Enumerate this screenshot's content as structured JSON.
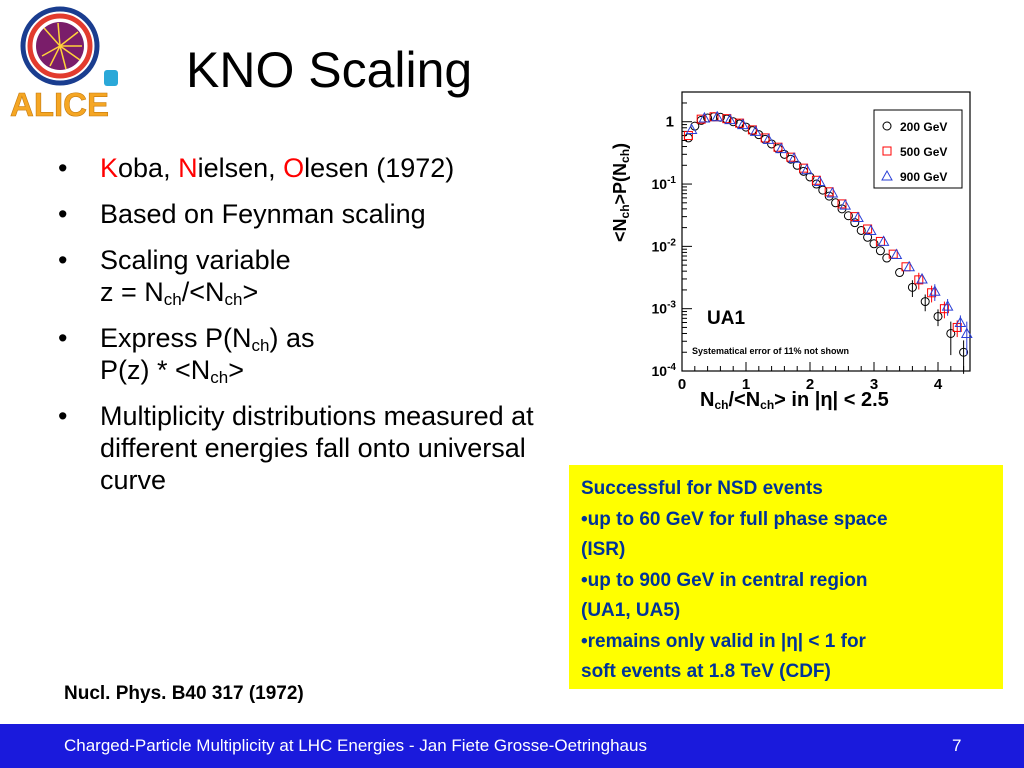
{
  "slide": {
    "title": "KNO Scaling",
    "reference": "Nucl. Phys. B40 317 (1972)"
  },
  "bullets": {
    "b1_k": "K",
    "b1_oba": "oba, ",
    "b1_n": "N",
    "b1_ielsen": "ielsen, ",
    "b1_o": "O",
    "b1_lesen": "lesen (1972)",
    "b2": "Based on Feynman scaling",
    "b3_line1": "Scaling variable",
    "b3_z": "z = N",
    "b3_ch1": "ch",
    "b3_mid": "/<N",
    "b3_ch2": "ch",
    "b3_end": ">",
    "b4_a": "Express P(N",
    "b4_ch1": "ch",
    "b4_b": ") as",
    "b4_c": "P(z) * <N",
    "b4_ch2": "ch",
    "b4_d": ">",
    "b5": "Multiplicity distributions measured at different energies fall onto universal curve"
  },
  "logo": {
    "text": "ALICE",
    "colors": {
      "text": "#f5a623",
      "ring": "#1a3d8f",
      "core": "#e23b2e"
    }
  },
  "axis_text": {
    "x_n": "N",
    "x_ch1": "ch",
    "x_mid": "/<N",
    "x_ch2": "ch",
    "x_end": "> in |η| < 2.5",
    "y_a": "<N",
    "y_ch1": "ch",
    "y_b": ">P(N",
    "y_ch2": "ch",
    "y_c": ")"
  },
  "chart_data": {
    "type": "scatter",
    "x_range": [
      0,
      4.5
    ],
    "y_scale": "log",
    "y_range": [
      0.0001,
      3
    ],
    "x_ticks": [
      0,
      1,
      2,
      3,
      4
    ],
    "y_ticks": [
      {
        "value": 1,
        "label": "1"
      },
      {
        "value": 0.1,
        "label": "10-1"
      },
      {
        "value": 0.01,
        "label": "10-2"
      },
      {
        "value": 0.001,
        "label": "10-3"
      },
      {
        "value": 0.0001,
        "label": "10-4"
      }
    ],
    "legend_position": "top-right",
    "annotations": [
      "UA1",
      "Systematical error of 11% not shown"
    ],
    "series": [
      {
        "name": "200 GeV",
        "marker": "circle",
        "color": "#000000",
        "x": [
          0.1,
          0.2,
          0.3,
          0.4,
          0.5,
          0.6,
          0.7,
          0.8,
          0.9,
          1.0,
          1.1,
          1.2,
          1.3,
          1.4,
          1.5,
          1.6,
          1.7,
          1.8,
          1.9,
          2.0,
          2.1,
          2.2,
          2.3,
          2.4,
          2.5,
          2.6,
          2.7,
          2.8,
          2.9,
          3.0,
          3.1,
          3.2,
          3.4,
          3.6,
          3.8,
          4.0,
          4.2,
          4.4
        ],
        "y": [
          0.55,
          0.85,
          1.05,
          1.15,
          1.2,
          1.18,
          1.1,
          1.0,
          0.92,
          0.82,
          0.72,
          0.62,
          0.52,
          0.44,
          0.37,
          0.3,
          0.25,
          0.2,
          0.16,
          0.13,
          0.1,
          0.08,
          0.064,
          0.05,
          0.04,
          0.031,
          0.024,
          0.018,
          0.014,
          0.011,
          0.0085,
          0.0065,
          0.0038,
          0.0022,
          0.0013,
          0.00075,
          0.0004,
          0.0002
        ]
      },
      {
        "name": "500 GeV",
        "marker": "square",
        "color": "#ff0000",
        "x": [
          0.1,
          0.3,
          0.5,
          0.7,
          0.9,
          1.1,
          1.3,
          1.5,
          1.7,
          1.9,
          2.1,
          2.3,
          2.5,
          2.7,
          2.9,
          3.1,
          3.3,
          3.5,
          3.7,
          3.9,
          4.1,
          4.3
        ],
        "y": [
          0.6,
          1.1,
          1.2,
          1.12,
          0.95,
          0.74,
          0.55,
          0.39,
          0.27,
          0.18,
          0.115,
          0.075,
          0.048,
          0.03,
          0.019,
          0.012,
          0.0075,
          0.0047,
          0.0029,
          0.0018,
          0.001,
          0.0005
        ]
      },
      {
        "name": "900 GeV",
        "marker": "triangle",
        "color": "#2a3fd6",
        "x": [
          0.15,
          0.35,
          0.55,
          0.75,
          0.95,
          1.15,
          1.35,
          1.55,
          1.75,
          1.95,
          2.15,
          2.35,
          2.55,
          2.75,
          2.95,
          3.15,
          3.35,
          3.55,
          3.75,
          3.95,
          4.15,
          4.35,
          4.45
        ],
        "y": [
          0.75,
          1.15,
          1.2,
          1.08,
          0.9,
          0.7,
          0.52,
          0.37,
          0.26,
          0.17,
          0.11,
          0.072,
          0.046,
          0.029,
          0.018,
          0.012,
          0.0074,
          0.0047,
          0.003,
          0.0019,
          0.0011,
          0.0006,
          0.0004
        ]
      }
    ]
  },
  "note": {
    "l1": "Successful for NSD events",
    "l2": "•up to 60 GeV for full phase space",
    "l3": "(ISR)",
    "l4": "•up to 900 GeV in central region",
    "l5": "(UA1, UA5)",
    "l6": "•remains only valid in |η| < 1 for",
    "l7": "soft events at 1.8 TeV (CDF)"
  },
  "footer": {
    "text": "Charged-Particle Multiplicity at LHC Energies - Jan Fiete Grosse-Oetringhaus",
    "page": "7",
    "colors": {
      "background": "#1a1adc"
    }
  }
}
